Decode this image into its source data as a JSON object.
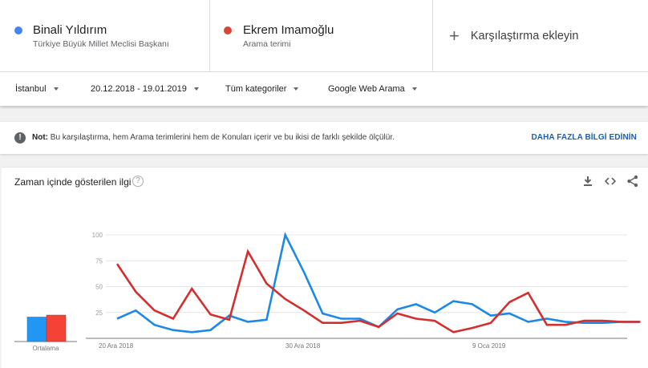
{
  "terms": [
    {
      "name": "Binali Yıldırım",
      "subtitle": "Türkiye Büyük Millet Meclisi Başkanı",
      "color": "#4285f4"
    },
    {
      "name": "Ekrem Imamoğlu",
      "subtitle": "Arama terimi",
      "color": "#db4437"
    }
  ],
  "add_comparison": {
    "icon": "plus-icon",
    "label": "Karşılaştırma ekleyin"
  },
  "filters": {
    "region": "İstanbul",
    "date_range": "20.12.2018 - 19.01.2019",
    "category": "Tüm kategoriler",
    "search_type": "Google Web Arama"
  },
  "note": {
    "icon": "exclamation-icon",
    "bold": "Not:",
    "text": " Bu karşılaştırma, hem Arama terimlerini hem de Konuları içerir ve bu ikisi de farklı şekilde ölçülür.",
    "link": "DAHA FAZLA BİLGİ EDİNİN"
  },
  "card": {
    "title": "Zaman içinde gösterilen ilgi",
    "help_icon": "?",
    "tools": [
      "download-icon",
      "embed-icon",
      "share-icon"
    ]
  },
  "chart_data": {
    "type": "line",
    "title": "Zaman içinde gösterilen ilgi",
    "xlabel": "",
    "ylabel": "",
    "ylim": [
      0,
      100
    ],
    "yticks": [
      25,
      50,
      75,
      100
    ],
    "grid": true,
    "x_tick_labels": [
      {
        "index": 0,
        "label": "20 Ara 2018"
      },
      {
        "index": 10,
        "label": "30 Ara 2018"
      },
      {
        "index": 20,
        "label": "9 Oca 2019"
      }
    ],
    "x": [
      "20.12.2018",
      "21.12.2018",
      "22.12.2018",
      "23.12.2018",
      "24.12.2018",
      "25.12.2018",
      "26.12.2018",
      "27.12.2018",
      "28.12.2018",
      "29.12.2018",
      "30.12.2018",
      "31.12.2018",
      "01.01.2019",
      "02.01.2019",
      "03.01.2019",
      "04.01.2019",
      "05.01.2019",
      "06.01.2019",
      "07.01.2019",
      "08.01.2019",
      "09.01.2019",
      "10.01.2019",
      "11.01.2019",
      "12.01.2019",
      "13.01.2019",
      "14.01.2019",
      "15.01.2019",
      "16.01.2019",
      "17.01.2019"
    ],
    "series": [
      {
        "name": "Binali Yıldırım",
        "color": "#1e88e5",
        "values": [
          19,
          27,
          13,
          8,
          6,
          8,
          22,
          16,
          18,
          100,
          64,
          24,
          19,
          19,
          11,
          28,
          33,
          25,
          36,
          33,
          22,
          24,
          16,
          19,
          16,
          15,
          15,
          16,
          16
        ]
      },
      {
        "name": "Ekrem Imamoğlu",
        "color": "#d32f2f",
        "values": [
          72,
          45,
          27,
          19,
          48,
          23,
          18,
          84,
          53,
          38,
          27,
          15,
          15,
          17,
          11,
          24,
          19,
          17,
          6,
          10,
          15,
          35,
          44,
          13,
          13,
          17,
          17,
          16,
          16
        ]
      }
    ],
    "average": {
      "label": "Ortalama",
      "values": [
        {
          "name": "Binali Yıldırım",
          "value": 25,
          "color": "#2196f3"
        },
        {
          "name": "Ekrem Imamoğlu",
          "value": 27,
          "color": "#f44336"
        }
      ]
    }
  }
}
